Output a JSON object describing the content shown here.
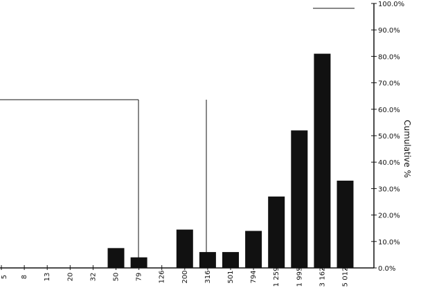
{
  "chart_data": {
    "type": "bar",
    "categories": [
      "5",
      "8",
      "13",
      "20",
      "32",
      "50",
      "79",
      "126",
      "200",
      "316",
      "501",
      "794",
      "1 259",
      "1 995",
      "3 162",
      "5 012"
    ],
    "series": [
      {
        "values": [
          0,
          0,
          0,
          0,
          0,
          7.5,
          4,
          0,
          14.5,
          6,
          6,
          14,
          27,
          52,
          81,
          33
        ]
      }
    ],
    "y_right": {
      "label": "Cumulative %",
      "range": [
        0,
        100
      ],
      "ticks": [
        "0.0%",
        "10.0%",
        "20.0%",
        "30.0%",
        "40.0%",
        "50.0%",
        "60.0%",
        "70.0%",
        "80.0%",
        "90.0%",
        "100.0%"
      ]
    },
    "ylim": [
      0,
      100
    ],
    "legend": "top-right",
    "colors": {
      "bar": "#111111",
      "line": "#111111"
    }
  }
}
